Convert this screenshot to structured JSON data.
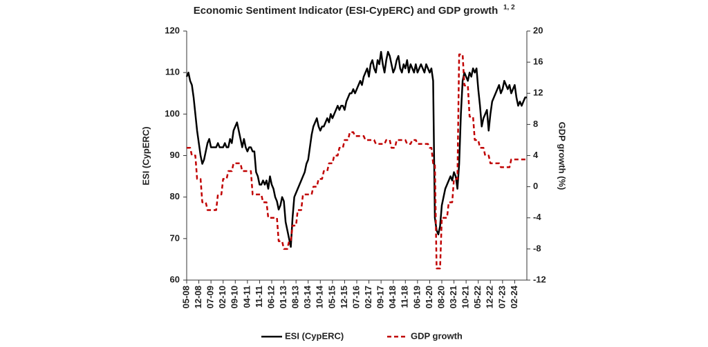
{
  "chart_data": {
    "type": "line",
    "title": "Economic Sentiment Indicator (ESI-CypERC) and GDP growth",
    "title_note": "1, 2",
    "y_label": "ESI (CypERC)",
    "y2_label": "GDP growth (%)",
    "ylim": [
      60,
      120
    ],
    "yticks": [
      60,
      70,
      80,
      90,
      100,
      110,
      120
    ],
    "y2lim": [
      -12,
      20
    ],
    "y2ticks": [
      -12,
      -8,
      -4,
      0,
      4,
      8,
      12,
      16,
      20
    ],
    "legend": "bottom",
    "categories": [
      "05-08",
      null,
      null,
      null,
      null,
      null,
      null,
      "12-08",
      null,
      null,
      null,
      null,
      null,
      null,
      "07-09",
      null,
      null,
      null,
      null,
      null,
      null,
      "02-10",
      null,
      null,
      null,
      null,
      null,
      null,
      "09-10",
      null,
      null,
      null,
      null,
      null,
      null,
      "04-11",
      null,
      null,
      null,
      null,
      null,
      null,
      "11-11",
      null,
      null,
      null,
      null,
      null,
      null,
      "06-12",
      null,
      null,
      null,
      null,
      null,
      null,
      "01-13",
      null,
      null,
      null,
      null,
      null,
      null,
      "08-13",
      null,
      null,
      null,
      null,
      null,
      null,
      "03-14",
      null,
      null,
      null,
      null,
      null,
      null,
      "10-14",
      null,
      null,
      null,
      null,
      null,
      null,
      "05-15",
      null,
      null,
      null,
      null,
      null,
      null,
      "12-15",
      null,
      null,
      null,
      null,
      null,
      null,
      "07-16",
      null,
      null,
      null,
      null,
      null,
      null,
      "02-17",
      null,
      null,
      null,
      null,
      null,
      null,
      "09-17",
      null,
      null,
      null,
      null,
      null,
      null,
      "04-18",
      null,
      null,
      null,
      null,
      null,
      null,
      "11-18",
      null,
      null,
      null,
      null,
      null,
      null,
      "06-19",
      null,
      null,
      null,
      null,
      null,
      null,
      "01-20",
      null,
      null,
      null,
      null,
      null,
      null,
      "08-20",
      null,
      null,
      null,
      null,
      null,
      null,
      "03-21",
      null,
      null,
      null,
      null,
      null,
      null,
      "10-21",
      null,
      null,
      null,
      null,
      null,
      null,
      "05-22",
      null,
      null,
      null,
      null,
      null,
      null,
      "12-22",
      null,
      null,
      null,
      null,
      null,
      null,
      "07-23",
      null,
      null,
      null,
      null,
      null,
      null,
      "02-24",
      null,
      null,
      null,
      null,
      null,
      null,
      null
    ],
    "series": [
      {
        "name": "ESI (CypERC)",
        "color": "#000000",
        "axis": "y",
        "dashed": false,
        "values": [
          109,
          110,
          108,
          107,
          104,
          100,
          96,
          93,
          90,
          88,
          89,
          91,
          93,
          94,
          92,
          92,
          92,
          92,
          93,
          92,
          92,
          92,
          93,
          92,
          92,
          94,
          93,
          96,
          97,
          98,
          96,
          94,
          92,
          94,
          92,
          91,
          92,
          92,
          91,
          91,
          86,
          85,
          83,
          83,
          84,
          83,
          84,
          82,
          85,
          83,
          82,
          80,
          79,
          77,
          78,
          80,
          79,
          74,
          72,
          70,
          68,
          75,
          80,
          81,
          82,
          83,
          84,
          85,
          86,
          88,
          89,
          92,
          95,
          97,
          98,
          99,
          97,
          96,
          97,
          97,
          98,
          99,
          98,
          100,
          99,
          100,
          101,
          102,
          101,
          102,
          102,
          101,
          103,
          104,
          105,
          105,
          106,
          105,
          106,
          107,
          108,
          107,
          109,
          110,
          111,
          109,
          112,
          113,
          111,
          110,
          113,
          112,
          115,
          112,
          110,
          113,
          115,
          114,
          112,
          110,
          111,
          113,
          114,
          111,
          110,
          112,
          111,
          113,
          110,
          112,
          111,
          110,
          112,
          110,
          111,
          112,
          111,
          110,
          112,
          111,
          110,
          111,
          108,
          75,
          72,
          71,
          73,
          78,
          80,
          82,
          83,
          84,
          85,
          84,
          86,
          85,
          82,
          88,
          100,
          108,
          110,
          109,
          108,
          110,
          109,
          111,
          110,
          111,
          106,
          102,
          97,
          99,
          100,
          101,
          96,
          100,
          103,
          104,
          105,
          106,
          107,
          105,
          106,
          108,
          107,
          106,
          107,
          105,
          106,
          107,
          104,
          102,
          103,
          102,
          103,
          104,
          104
        ]
      },
      {
        "name": "GDP growth",
        "color": "#c00000",
        "axis": "y2",
        "dashed": true,
        "values": [
          5,
          5,
          5,
          4,
          4,
          4,
          1,
          1,
          1,
          -2,
          -2,
          -2,
          -3,
          -3,
          -3,
          -3,
          -3,
          -3,
          -1,
          -1,
          -1,
          1,
          1,
          1,
          2,
          2,
          2,
          3,
          3,
          3,
          3,
          3,
          2,
          2,
          2,
          2,
          2,
          2,
          -1,
          -1,
          -1,
          -1,
          -1,
          -1,
          -2,
          -2,
          -2,
          -4,
          -4,
          -4,
          -4,
          -4,
          -4,
          -7,
          -7,
          -7,
          -8,
          -8,
          -8,
          -7,
          -7,
          -5,
          -5,
          -5,
          -3,
          -3,
          -3,
          -1,
          -1,
          -1,
          -1,
          -1,
          -1,
          0,
          0,
          0,
          1,
          1,
          1,
          2,
          2,
          2,
          3,
          3,
          3,
          4,
          4,
          4,
          5,
          5,
          5,
          6,
          6,
          6,
          7,
          7,
          7,
          6.5,
          6.5,
          6.5,
          6.5,
          6.5,
          6.5,
          6,
          6,
          6,
          6,
          6,
          6,
          5.5,
          5.5,
          5.5,
          5.5,
          5.5,
          5.5,
          6,
          6,
          6,
          5,
          5,
          5,
          6,
          6,
          6,
          6,
          6,
          6,
          5.5,
          5.5,
          5.5,
          6,
          6,
          6,
          5.5,
          5.5,
          5.5,
          5.5,
          5.5,
          5.5,
          5.5,
          5,
          5,
          3,
          3,
          -10.5,
          -10.5,
          -10.5,
          -4,
          -4,
          -4,
          -4,
          -2,
          -2,
          -2,
          1,
          1,
          1,
          17,
          17,
          17,
          13,
          13,
          13,
          9,
          9,
          9,
          6,
          6,
          6,
          5,
          5,
          5,
          4,
          4,
          4,
          3,
          3,
          3,
          3,
          3,
          3,
          2.5,
          2.5,
          2.5,
          2.5,
          2.5,
          2.5,
          3.5,
          3.5,
          3.5,
          3.5,
          3.5,
          3.5,
          3.5,
          3.5,
          3.5,
          3.5
        ]
      }
    ]
  }
}
